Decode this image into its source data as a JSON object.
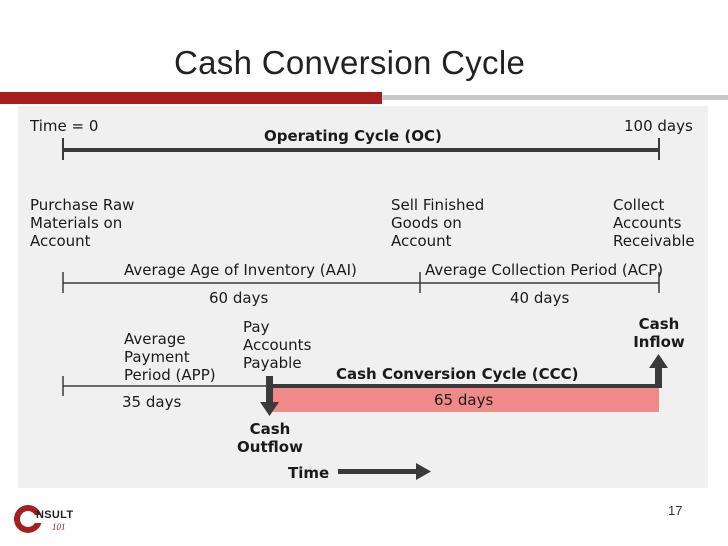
{
  "slide": {
    "title": "Cash Conversion Cycle",
    "page_number": "17"
  },
  "colors": {
    "accent_red": "#a51f1f",
    "ccc_bar_fill": "#f08a8a",
    "line_dark": "#3a3a3a",
    "panel_bg": "#f0f0f0"
  },
  "diagram": {
    "time_zero": "Time = 0",
    "time_end": "100 days",
    "operating_cycle_label": "Operating Cycle (OC)",
    "event_purchase": [
      "Purchase Raw",
      "Materials on",
      "Account"
    ],
    "event_sell": [
      "Sell Finished",
      "Goods on",
      "Account"
    ],
    "event_collect": [
      "Collect",
      "Accounts",
      "Receivable"
    ],
    "aai_label": "Average Age of Inventory (AAI)",
    "aai_days": "60 days",
    "acp_label": "Average Collection Period (ACP)",
    "acp_days": "40 days",
    "app_label": [
      "Average",
      "Payment",
      "Period (APP)"
    ],
    "app_days": "35 days",
    "pay_ap_label": [
      "Pay",
      "Accounts",
      "Payable"
    ],
    "ccc_label": "Cash Conversion Cycle (CCC)",
    "ccc_days": "65 days",
    "cash_inflow": [
      "Cash",
      "Inflow"
    ],
    "cash_outflow": [
      "Cash",
      "Outflow"
    ],
    "time_label": "Time"
  },
  "logo": {
    "icon": "c-circle-logo-icon",
    "word": "NSULT",
    "sub": "101"
  }
}
